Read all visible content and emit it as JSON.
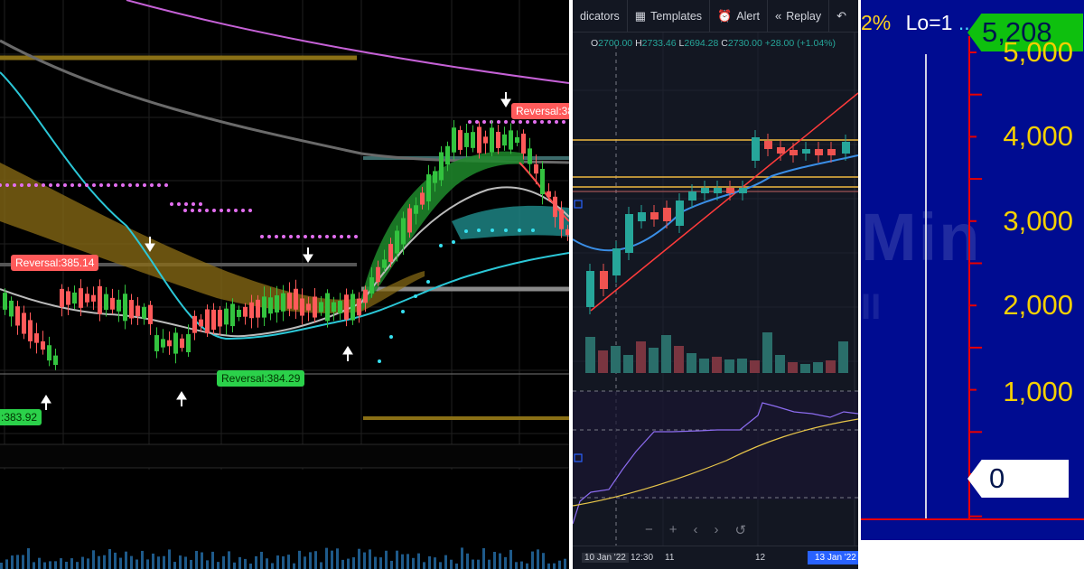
{
  "panel_left": {
    "labels": {
      "reversal_red_1": "Reversal:385.14",
      "reversal_green_1": "Reversal:384.29",
      "reversal_green_2": ":383.92",
      "reversal_red_2": "Reversal:38"
    },
    "colors": {
      "up": "#33c33f",
      "down": "#ff5a5a",
      "cyan_ma": "#2bc7d7",
      "ribbon": "#8c6d16",
      "magenta_dots": "#e36ef0"
    }
  },
  "panel_middle": {
    "toolbar": {
      "indicators": "dicators",
      "templates": "Templates",
      "alert": "Alert",
      "replay": "Replay",
      "templates_icon": "grid-icon",
      "alert_icon": "alarm-clock-icon",
      "replay_icon": "rewind-icon",
      "undo_icon": "undo-icon"
    },
    "ohlc": {
      "o_label": "O",
      "o": "2700.00",
      "h_label": "H",
      "h": "2733.46",
      "l_label": "L",
      "l": "2694.28",
      "c_label": "C",
      "c": "2730.00",
      "change": "+28.00 (+1.04%)"
    },
    "nav": {
      "minus": "−",
      "plus": "+",
      "left": "‹",
      "right": "›",
      "reset": "↺"
    },
    "time_axis": {
      "t1": "10 Jan '22",
      "t2": "12:30",
      "t3": "11",
      "t4": "12",
      "t5": "13 Jan '22"
    }
  },
  "panel_right": {
    "header": {
      "pct": "2%",
      "lo": "Lo=1",
      "dots": " ..."
    },
    "price_tag": "5,208",
    "axis_ticks": [
      "5,000",
      "4,000",
      "3,000",
      "2,000",
      "1,000"
    ],
    "zero_tag": "0",
    "watermark": "Min",
    "watermark2": "II",
    "colors": {
      "bg": "#000c91",
      "axis": "#e80000",
      "ticks": "#f5d000",
      "tag": "#0ec00e"
    }
  }
}
